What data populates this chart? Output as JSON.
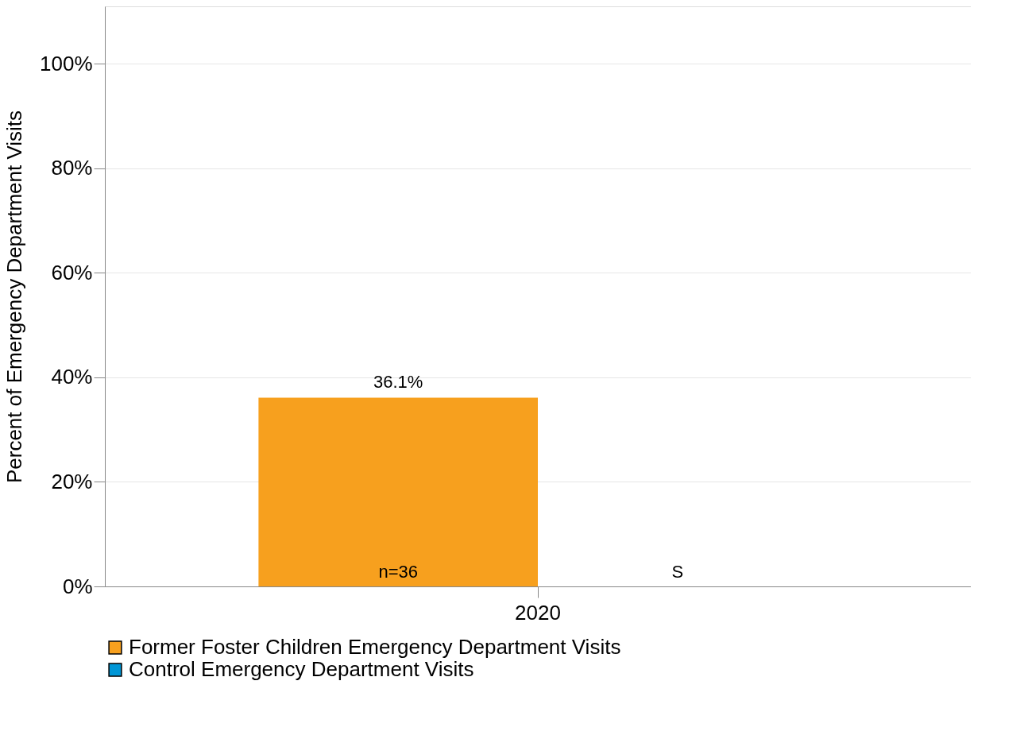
{
  "chart_data": {
    "type": "bar",
    "ylabel": "Percent of Emergency Department Visits",
    "categories": [
      "2020"
    ],
    "series": [
      {
        "name": "Former Foster Children Emergency Department Visits",
        "color": "#f7a01e",
        "values": [
          36.1
        ],
        "value_labels": [
          "36.1%"
        ]
      },
      {
        "name": "Control Emergency Department Visits",
        "color": "#0096d6",
        "values": [
          null
        ],
        "value_labels": [
          null
        ]
      }
    ],
    "annotations": [
      "n=36",
      "S"
    ],
    "ylim": [
      0,
      111
    ],
    "yticks": [
      {
        "value": 0,
        "label": "0%"
      },
      {
        "value": 20,
        "label": "20%"
      },
      {
        "value": 40,
        "label": "40%"
      },
      {
        "value": 60,
        "label": "60%"
      },
      {
        "value": 80,
        "label": "80%"
      },
      {
        "value": 100,
        "label": "100%"
      }
    ],
    "grid": "y",
    "legend": "bottom"
  }
}
